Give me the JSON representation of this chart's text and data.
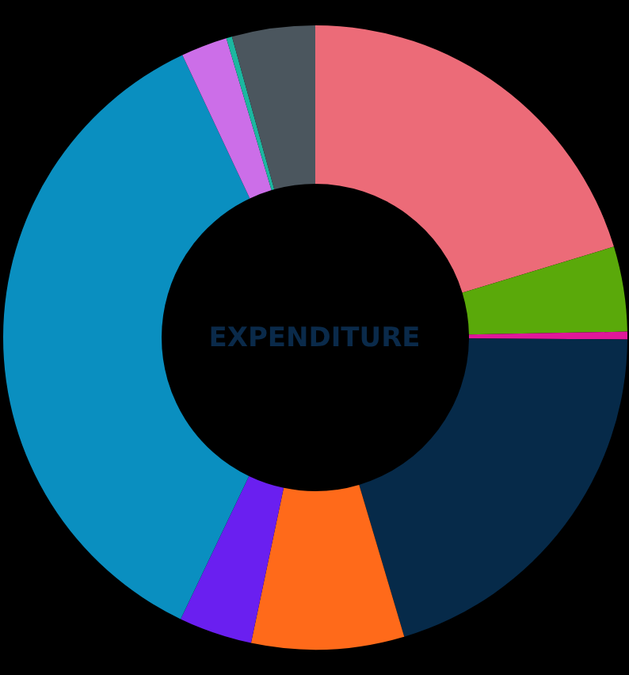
{
  "chart_data": {
    "type": "donut",
    "title": "EXPENDITURE",
    "categories": [
      null,
      null,
      null,
      null,
      null,
      null,
      null,
      null,
      null,
      null
    ],
    "values": [
      20.3,
      4.4,
      0.4,
      20.3,
      7.9,
      3.8,
      35.9,
      2.4,
      0.3,
      4.3
    ],
    "colors": [
      "#ec6b78",
      "#5aa90a",
      "#e0189a",
      "#062a49",
      "#ff6a1a",
      "#6a1ff0",
      "#0a8fc0",
      "#cc6ee8",
      "#1cb7a0",
      "#4b565e"
    ]
  }
}
